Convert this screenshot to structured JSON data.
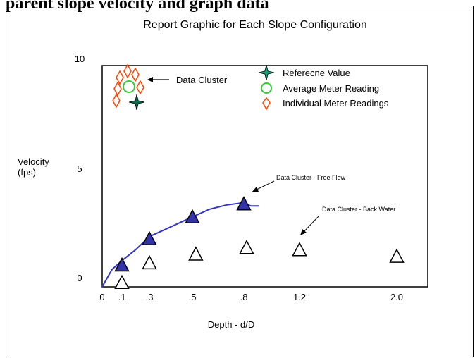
{
  "page": {
    "heading": "parent slope velocity and graph data"
  },
  "chart_data": {
    "type": "scatter",
    "title": "Report Graphic for Each Slope Configuration",
    "xlabel": "Depth  - d/D",
    "ylabel_line1": "Velocity",
    "ylabel_line2": "(fps)",
    "x_ticks": [
      {
        "value": 0,
        "label": "0"
      },
      {
        "value": 0.1,
        "label": ".1"
      },
      {
        "value": 0.3,
        "label": ".3"
      },
      {
        "value": 0.5,
        "label": ".5"
      },
      {
        "value": 0.8,
        "label": ".8"
      },
      {
        "value": 1.2,
        "label": "1.2"
      },
      {
        "value": 2.0,
        "label": "2.0"
      }
    ],
    "y_ticks": [
      {
        "value": 0,
        "label": "0"
      },
      {
        "value": 5,
        "label": "5"
      },
      {
        "value": 10,
        "label": "10"
      }
    ],
    "ylim": [
      0,
      10
    ],
    "legend": {
      "placement": "top-right",
      "entries": [
        {
          "marker": "star",
          "label": "Referecne Value",
          "color": "#1aa37a"
        },
        {
          "marker": "circle",
          "label": "Average Meter Reading",
          "color": "#33cc33"
        },
        {
          "marker": "diamond",
          "label": "Individual Meter Readings",
          "color": "#ff4500"
        }
      ]
    },
    "series": [
      {
        "name": "Data Cluster - Free Flow",
        "marker": "filled-triangle",
        "color": "#3333aa",
        "points": [
          {
            "x": 0.1,
            "y": 1.0
          },
          {
            "x": 0.3,
            "y": 2.2
          },
          {
            "x": 0.5,
            "y": 3.2
          },
          {
            "x": 0.8,
            "y": 3.8
          }
        ]
      },
      {
        "name": "Data Cluster - Back Water",
        "marker": "open-triangle",
        "color": "#000000",
        "points": [
          {
            "x": 0.1,
            "y": 0.2
          },
          {
            "x": 0.3,
            "y": 1.1
          },
          {
            "x": 0.52,
            "y": 1.5
          },
          {
            "x": 0.82,
            "y": 1.8
          },
          {
            "x": 1.2,
            "y": 1.7
          },
          {
            "x": 2.0,
            "y": 1.4
          }
        ]
      },
      {
        "name": "fit curve",
        "line_color": "#3333cc",
        "points": [
          {
            "x": 0.0,
            "y": 0.0
          },
          {
            "x": 0.05,
            "y": 0.8
          },
          {
            "x": 0.1,
            "y": 1.2
          },
          {
            "x": 0.2,
            "y": 1.7
          },
          {
            "x": 0.3,
            "y": 2.3
          },
          {
            "x": 0.4,
            "y": 2.75
          },
          {
            "x": 0.5,
            "y": 3.2
          },
          {
            "x": 0.6,
            "y": 3.55
          },
          {
            "x": 0.7,
            "y": 3.75
          },
          {
            "x": 0.8,
            "y": 3.85
          },
          {
            "x": 0.85,
            "y": 3.7
          }
        ]
      }
    ],
    "annotations": {
      "data_cluster": "Data Cluster",
      "free_flow": "Data Cluster - Free Flow",
      "back_water": "Data Cluster - Back Water"
    }
  }
}
